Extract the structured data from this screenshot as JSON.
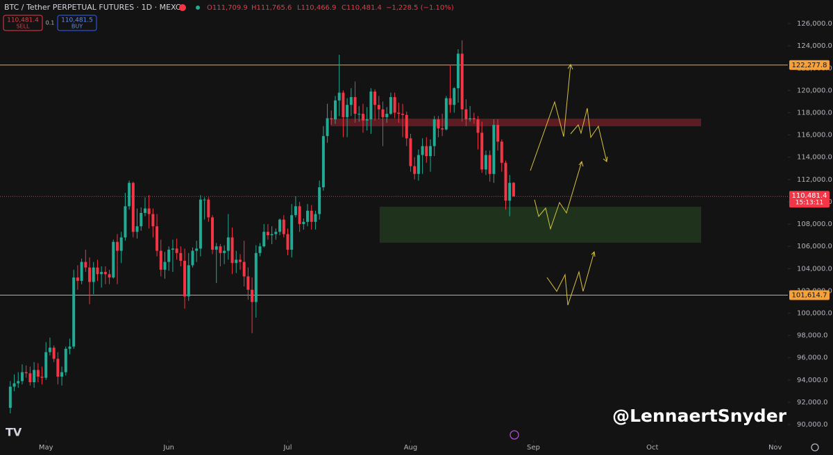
{
  "chart_data": {
    "type": "candlestick",
    "title": "BTC / Tether PERPETUAL FUTURES · 1D · MEXC",
    "ohlc_legend": [
      "O111,709.9",
      "H111,765.6",
      "L110,466.9",
      "C110,481.4",
      "−1,228.5 (−1.10%)"
    ],
    "trade_panel": {
      "sell_price": "110,481.4",
      "sell": "SELL",
      "quantity": "0.1",
      "buy_price": "110,481.5",
      "buy": "BUY"
    },
    "x": [
      -9,
      -8,
      -7,
      -6,
      -5,
      -4,
      -3,
      -2,
      -1,
      0,
      1,
      2,
      3,
      4,
      5,
      6,
      7,
      8,
      9,
      10,
      11,
      12,
      13,
      14,
      15,
      16,
      17,
      18,
      19,
      20,
      21,
      22,
      23,
      24,
      25,
      26,
      27,
      28,
      29,
      30,
      31,
      32,
      33,
      34,
      35,
      36,
      37,
      38,
      39,
      40,
      41,
      42,
      43,
      44,
      45,
      46,
      47,
      48,
      49,
      50,
      51,
      52,
      53,
      54,
      55,
      56,
      57,
      58,
      59,
      60,
      61,
      62,
      63,
      64,
      65,
      66,
      67,
      68,
      69,
      70,
      71,
      72,
      73,
      74,
      75,
      76,
      77,
      78,
      79,
      80,
      81,
      82,
      83,
      84,
      85,
      86,
      87,
      88,
      89,
      90,
      91,
      92,
      93,
      94,
      95,
      96,
      97,
      98,
      99,
      100,
      101,
      102,
      103,
      104,
      105,
      106,
      107,
      108,
      109,
      110,
      111,
      112,
      113,
      114,
      115,
      116,
      117,
      118
    ],
    "open": [
      91500,
      93400,
      93700,
      93900,
      94700,
      94600,
      93800,
      94900,
      94300,
      94200,
      96500,
      96900,
      95900,
      94300,
      94700,
      96800,
      97000,
      103200,
      102900,
      104600,
      104100,
      102800,
      104100,
      103500,
      103700,
      103500,
      103200,
      106400,
      105600,
      106800,
      109600,
      111700,
      107300,
      107800,
      109000,
      109400,
      108900,
      107800,
      105600,
      103900,
      104600,
      105700,
      105800,
      105400,
      104700,
      101500,
      104300,
      105600,
      105800,
      110200,
      110200,
      108600,
      105700,
      106000,
      105400,
      105600,
      106800,
      104500,
      104800,
      104600,
      103300,
      102100,
      101000,
      105400,
      106000,
      107300,
      107000,
      107100,
      107300,
      108400,
      107100,
      105700,
      108800,
      109600,
      108000,
      108200,
      109200,
      108200,
      108900,
      111300,
      115900,
      117500,
      117400,
      119100,
      119800,
      117600,
      118700,
      119400,
      117900,
      117900,
      117300,
      117400,
      119900,
      118700,
      118300,
      117600,
      117900,
      119400,
      118000,
      117900,
      117800,
      115700,
      113200,
      112500,
      114200,
      115000,
      114100,
      115000,
      117400,
      116600,
      116500,
      119300,
      118700,
      120200,
      123300,
      118300,
      117400,
      117500,
      117400,
      116200,
      112900,
      114200,
      112500,
      116900,
      115400,
      113500,
      110100,
      111709.9
    ],
    "high": [
      93900,
      94500,
      94700,
      95400,
      95300,
      95200,
      95600,
      95500,
      95200,
      97400,
      97800,
      97100,
      96500,
      95200,
      97000,
      97700,
      103900,
      104300,
      104900,
      105700,
      105000,
      104600,
      104800,
      104200,
      104200,
      103900,
      106600,
      107100,
      107300,
      110800,
      111900,
      111800,
      109400,
      109500,
      110400,
      110600,
      109400,
      108900,
      106600,
      105500,
      106000,
      106600,
      106700,
      106000,
      105800,
      105400,
      105900,
      106500,
      110600,
      110400,
      110400,
      108800,
      106300,
      106200,
      106100,
      108900,
      107700,
      105600,
      105300,
      106500,
      104100,
      103200,
      106100,
      106300,
      108000,
      108000,
      107800,
      107600,
      108500,
      108800,
      107600,
      109800,
      110500,
      110000,
      108500,
      109800,
      109700,
      109200,
      111900,
      116800,
      118800,
      118200,
      119500,
      123200,
      120000,
      119300,
      120200,
      120800,
      118600,
      118800,
      118500,
      120200,
      120100,
      119500,
      119000,
      118500,
      119800,
      119800,
      118900,
      118800,
      118100,
      116100,
      114000,
      114700,
      115700,
      115800,
      115600,
      117700,
      117700,
      117900,
      119500,
      122300,
      120300,
      123700,
      124500,
      119200,
      118600,
      118000,
      117700,
      117200,
      114600,
      114600,
      117400,
      117400,
      115600,
      113700,
      112400,
      111765.6
    ],
    "low": [
      91000,
      93000,
      93300,
      93600,
      94200,
      93500,
      93300,
      93800,
      93600,
      94000,
      96200,
      95600,
      93600,
      93500,
      94400,
      96300,
      96800,
      102100,
      102600,
      103700,
      100800,
      101700,
      102900,
      102300,
      102600,
      102600,
      103100,
      102600,
      104500,
      106500,
      109300,
      106800,
      106700,
      107400,
      108700,
      107600,
      106800,
      105100,
      103300,
      103100,
      103800,
      103700,
      104800,
      104200,
      100400,
      101100,
      104100,
      104600,
      105100,
      108400,
      108200,
      105300,
      102700,
      104200,
      104400,
      104800,
      103500,
      103600,
      103900,
      102400,
      101200,
      98200,
      99600,
      105100,
      105900,
      106600,
      106200,
      106600,
      107000,
      106800,
      105200,
      105000,
      108600,
      107300,
      107500,
      107800,
      107500,
      107500,
      108400,
      111000,
      115300,
      116900,
      117000,
      117700,
      115800,
      115800,
      117700,
      117100,
      117200,
      116200,
      116400,
      116100,
      117300,
      117400,
      115000,
      117100,
      117800,
      117500,
      117100,
      115800,
      115000,
      112700,
      112000,
      111900,
      112500,
      113500,
      112700,
      114100,
      115800,
      115900,
      116400,
      118000,
      118000,
      118900,
      117200,
      116800,
      117200,
      117000,
      114700,
      112600,
      112400,
      111800,
      111700,
      114600,
      112700,
      109300,
      108700,
      110466.9
    ],
    "close": [
      93400,
      93700,
      93900,
      94700,
      94600,
      93800,
      94900,
      94300,
      94200,
      96500,
      96900,
      95900,
      94300,
      94700,
      96800,
      97000,
      103200,
      102900,
      104600,
      104100,
      102800,
      104100,
      103500,
      103700,
      103500,
      103200,
      106400,
      105600,
      106800,
      109600,
      111700,
      107300,
      107800,
      109000,
      109400,
      108900,
      107800,
      105600,
      103900,
      104600,
      105700,
      105800,
      105400,
      104700,
      101500,
      104300,
      105600,
      105800,
      110200,
      110200,
      108600,
      105700,
      106000,
      105400,
      105600,
      106800,
      104500,
      104800,
      104600,
      103300,
      102100,
      101000,
      105400,
      106000,
      107300,
      107000,
      107100,
      107300,
      108400,
      107100,
      105700,
      108800,
      109600,
      108000,
      108200,
      109200,
      108200,
      108900,
      111300,
      115900,
      117500,
      117400,
      119100,
      119800,
      117600,
      118700,
      119400,
      117900,
      117900,
      117300,
      117400,
      119900,
      118700,
      118300,
      117600,
      117900,
      119400,
      118000,
      117900,
      117800,
      115700,
      113200,
      112500,
      114200,
      115000,
      114100,
      115000,
      117400,
      116600,
      116500,
      119300,
      118700,
      120200,
      123300,
      118300,
      117400,
      117500,
      117400,
      116200,
      112900,
      114200,
      112500,
      116900,
      115400,
      113500,
      110100,
      111700,
      110481.4
    ],
    "up_color": "#22ab94",
    "down_color": "#f23645",
    "xlim": [
      -11.6,
      187.2
    ],
    "xticks": [
      {
        "value": 0,
        "label": "May"
      },
      {
        "value": 31,
        "label": "Jun"
      },
      {
        "value": 61,
        "label": "Jul"
      },
      {
        "value": 92,
        "label": "Aug"
      },
      {
        "value": 123,
        "label": "Sep"
      },
      {
        "value": 153,
        "label": "Oct"
      },
      {
        "value": 184,
        "label": "Nov"
      }
    ],
    "ylim": [
      88570,
      128120
    ],
    "yticks": [
      {
        "value": 90000,
        "label": "90,000.0"
      },
      {
        "value": 92000,
        "label": "92,000.0"
      },
      {
        "value": 94000,
        "label": "94,000.0"
      },
      {
        "value": 96000,
        "label": "96,000.0"
      },
      {
        "value": 98000,
        "label": "98,000.0"
      },
      {
        "value": 100000,
        "label": "100,000.0"
      },
      {
        "value": 102000,
        "label": "102,000.0"
      },
      {
        "value": 104000,
        "label": "104,000.0"
      },
      {
        "value": 106000,
        "label": "106,000.0"
      },
      {
        "value": 108000,
        "label": "108,000.0"
      },
      {
        "value": 110000,
        "label": "110,000.0"
      },
      {
        "value": 112000,
        "label": "112,000.0"
      },
      {
        "value": 114000,
        "label": "114,000.0"
      },
      {
        "value": 116000,
        "label": "116,000.0"
      },
      {
        "value": 118000,
        "label": "118,000.0"
      },
      {
        "value": 120000,
        "label": "120,000.0"
      },
      {
        "value": 122000,
        "label": "122,000.0"
      },
      {
        "value": 124000,
        "label": "124,000.0"
      },
      {
        "value": 126000,
        "label": "126,000.0"
      }
    ],
    "levels": [
      {
        "value": 122277.8,
        "label": "122,277.8",
        "color": "#f7a13a"
      },
      {
        "value": 101614.7,
        "label": "101,614.7",
        "color": "#f7a13a"
      }
    ],
    "last_price": {
      "value": 110481.4,
      "label": "110,481.4",
      "countdown": "15:13:11",
      "color": "#f23645"
    },
    "zones": [
      {
        "low": 116780,
        "high": 117470,
        "start": 71.8,
        "end": 165.3,
        "color": "#6b1f24"
      },
      {
        "low": 106320,
        "high": 109550,
        "start": 84.2,
        "end": 165.3,
        "color": "#22391f"
      }
    ],
    "watermark": "@LennaertSnyder"
  }
}
